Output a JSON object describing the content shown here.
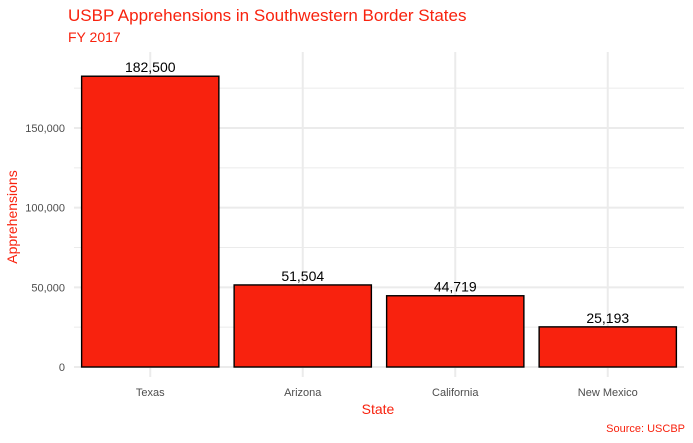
{
  "title": "USBP Apprehensions in Southwestern Border States",
  "subtitle": "FY 2017",
  "caption": "Source: USCBP",
  "colors": {
    "bar_fill": "#f8220e",
    "bar_stroke": "#000000",
    "title": "#f8220e",
    "grid": "#ebebeb"
  },
  "chart_data": {
    "type": "bar",
    "categories": [
      "Texas",
      "Arizona",
      "California",
      "New Mexico"
    ],
    "values": [
      182500,
      51504,
      44719,
      25193
    ],
    "data_labels": [
      "182,500",
      "51,504",
      "44,719",
      "25,193"
    ],
    "xlabel": "State",
    "ylabel": "Apprehensions",
    "ylim": [
      0,
      190000
    ],
    "yticks": [
      0,
      50000,
      100000,
      150000
    ],
    "ytick_labels": [
      "0",
      "50,000",
      "100,000",
      "150,000"
    ],
    "grid": true,
    "legend": "none"
  }
}
